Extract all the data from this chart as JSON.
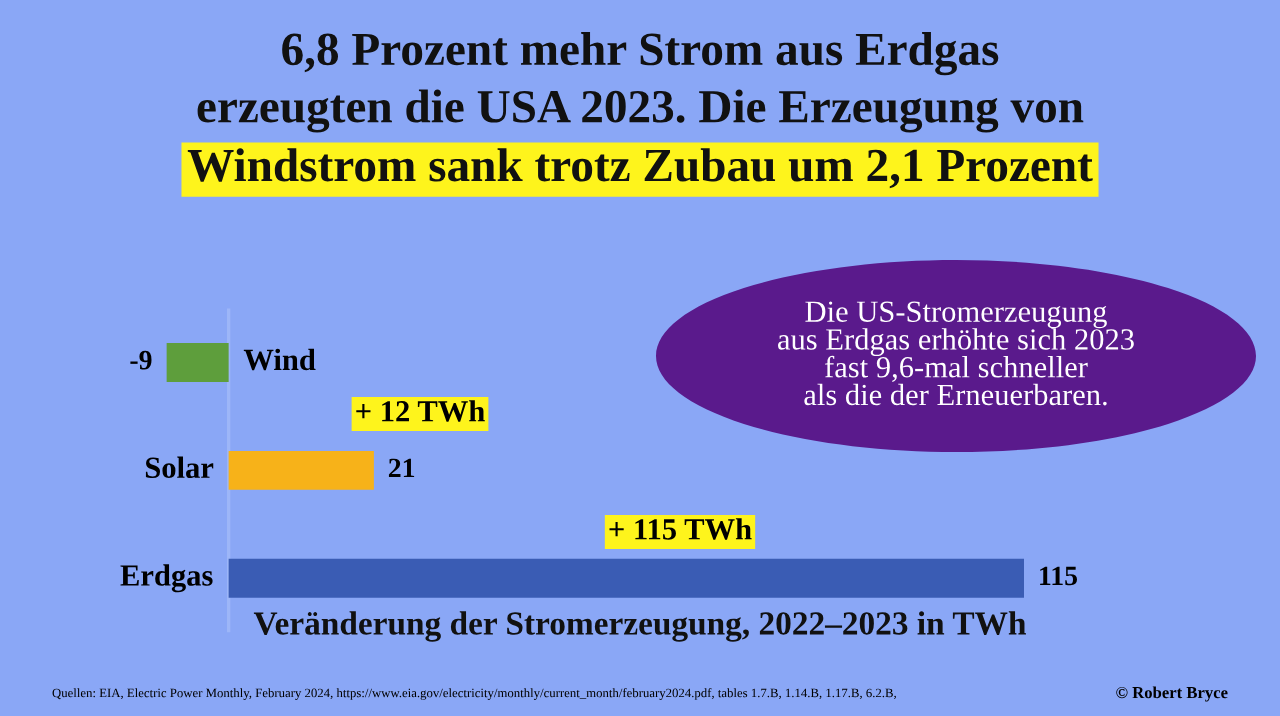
{
  "chart_data": {
    "type": "bar",
    "orientation": "horizontal",
    "title": "6,8 Prozent mehr Strom aus Erdgas\nerzeugten die USA 2023. Die Erzeugung von\nWindstrom sank trotz Zubau um 2,1 Prozent",
    "xlabel": "Veränderung der Stromerzeugung, 2022–2023 in TWh",
    "categories": [
      "Wind",
      "Solar",
      "Erdgas"
    ],
    "values": [
      -9,
      21,
      115
    ],
    "colors": [
      "#5e9e3c",
      "#f7b219",
      "#3a5cb4"
    ],
    "data_labels": true,
    "annotations": [
      "+ 12 TWh",
      "+ 115 TWh",
      "Die US-Stromerzeugung\naus Erdgas erhöhte sich 2023\nfast 9,6-mal schneller\nals die der Erneuerbaren.",
      "Quellen: EIA, Electric Power Monthly, February 2024, https://www.eia.gov/electricity/monthly/current_month/february2024.pdf, tables 1.7.B, 1.14.B, 1.17.B, 6.2.B,",
      "© Robert Bryce"
    ]
  }
}
